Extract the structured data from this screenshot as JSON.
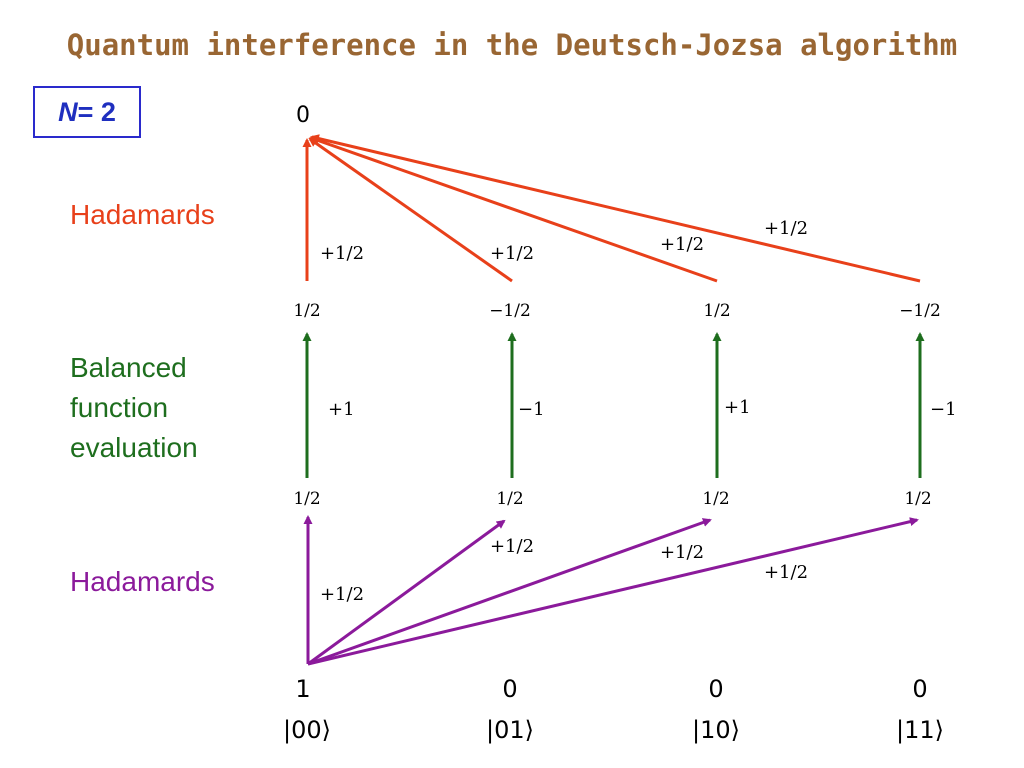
{
  "title": "Quantum interference in the Deutsch-Jozsa algorithm",
  "n_label": {
    "var": "N",
    "rest": " = 2"
  },
  "side_labels": {
    "hadamards_top": "Hadamards",
    "balanced": [
      "Balanced",
      "function",
      "evaluation"
    ],
    "hadamards_bottom": "Hadamards"
  },
  "colors": {
    "title": "#996633",
    "n_box": "#1f2fbf",
    "top_hadamard": "#e8401a",
    "oracle": "#1e6e1e",
    "bottom_hadamard": "#8b1a9b"
  },
  "top_node": "0",
  "top_edge_labels": [
    "+1/2",
    "+1/2",
    "+1/2",
    "+1/2"
  ],
  "columns": [
    {
      "ket": "|00⟩",
      "initial": "1",
      "after_h": "1/2",
      "oracle_sign": "+1",
      "after_oracle": "1/2"
    },
    {
      "ket": "|01⟩",
      "initial": "0",
      "after_h": "1/2",
      "oracle_sign": "−1",
      "after_oracle": "−1/2"
    },
    {
      "ket": "|10⟩",
      "initial": "0",
      "after_h": "1/2",
      "oracle_sign": "+1",
      "after_oracle": "1/2"
    },
    {
      "ket": "|11⟩",
      "initial": "0",
      "after_h": "1/2",
      "oracle_sign": "−1",
      "after_oracle": "−1/2"
    }
  ],
  "bottom_edge_labels": [
    "+1/2",
    "+1/2",
    "+1/2",
    "+1/2"
  ]
}
